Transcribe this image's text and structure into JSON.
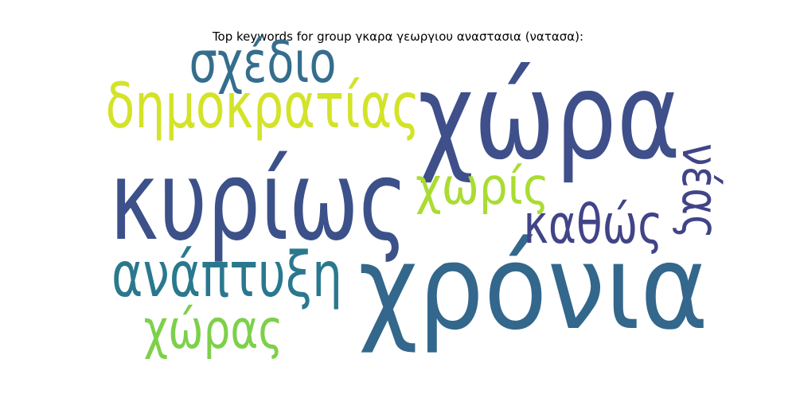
{
  "chart_data": {
    "type": "wordcloud",
    "title": "Top keywords for group γκαρα γεωργιου αναστασια (νατασα):",
    "words": [
      {
        "text": "χώρα",
        "weight": 1.0,
        "color": "#3f4f8a",
        "orientation": "horizontal"
      },
      {
        "text": "χρόνια",
        "weight": 0.98,
        "color": "#33678c",
        "orientation": "horizontal"
      },
      {
        "text": "κυρίως",
        "weight": 0.92,
        "color": "#3c5189",
        "orientation": "horizontal"
      },
      {
        "text": "δημοκρατίας",
        "weight": 0.52,
        "color": "#d3e328",
        "orientation": "horizontal"
      },
      {
        "text": "ανάπτυξη",
        "weight": 0.52,
        "color": "#2a788e",
        "orientation": "horizontal"
      },
      {
        "text": "σχέδιο",
        "weight": 0.48,
        "color": "#356e8d",
        "orientation": "horizontal"
      },
      {
        "text": "καθώς",
        "weight": 0.45,
        "color": "#414487",
        "orientation": "horizontal"
      },
      {
        "text": "χώρας",
        "weight": 0.45,
        "color": "#7ed04b",
        "orientation": "horizontal"
      },
      {
        "text": "χωρίς",
        "weight": 0.42,
        "color": "#aadc32",
        "orientation": "horizontal"
      },
      {
        "text": "νέας",
        "weight": 0.42,
        "color": "#414487",
        "orientation": "vertical"
      }
    ]
  }
}
